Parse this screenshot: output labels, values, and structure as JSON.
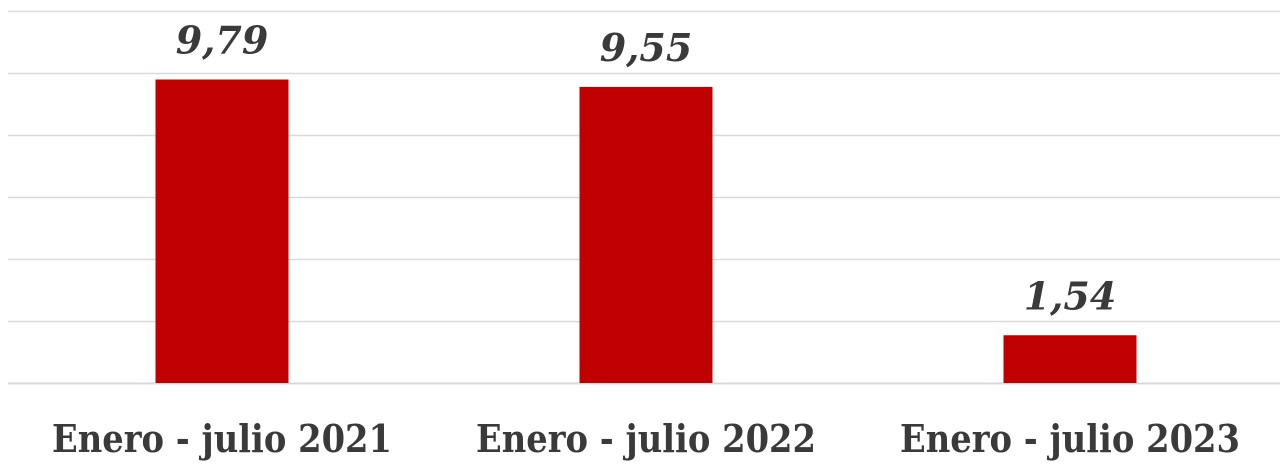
{
  "chart_data": {
    "type": "bar",
    "categories": [
      "Enero - julio 2021",
      "Enero - julio 2022",
      "Enero - julio 2023"
    ],
    "values": [
      9.79,
      9.55,
      1.54
    ],
    "value_labels": [
      "9,79",
      "9,55",
      "1,54"
    ],
    "ylim": [
      0,
      12
    ],
    "y_tick_step": 2,
    "grid": true,
    "legend": "none",
    "title": "",
    "xlabel": "",
    "ylabel": "",
    "colors": {
      "bar": "#c00000",
      "grid": "#d9d9d9",
      "text": "#3a3a3a"
    }
  }
}
